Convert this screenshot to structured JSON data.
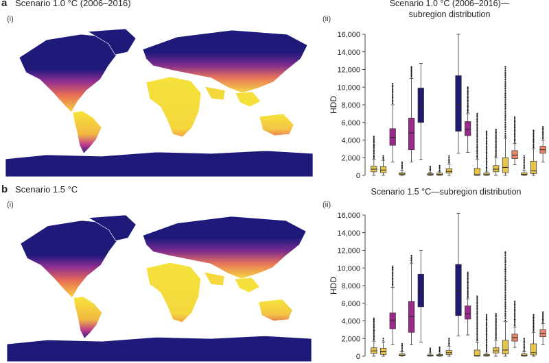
{
  "panel_a": {
    "letter": "a",
    "title": "Scenario 1.0 °C (2006–2016)",
    "map_label": "(i)",
    "chart_label": "(ii)",
    "chart_title_line1": "Scenario 1.0 °C (2006–2016)—",
    "chart_title_line2": "subregion distribution"
  },
  "panel_b": {
    "letter": "b",
    "title": "Scenario 1.5 °C",
    "map_label": "(i)",
    "chart_label": "(ii)",
    "chart_title_line1": "Scenario 1.5 °C—subregion distribution"
  },
  "colors": {
    "navy": "#1f1a7a",
    "purple": "#9b2a8a",
    "orange": "#e7836a",
    "yellow": "#e8c84a",
    "ocean": "#ffffff"
  },
  "chart_data": [
    {
      "type": "box",
      "title": "Scenario 1.0 °C (2006–2016)—subregion distribution",
      "ylabel": "HDD",
      "ylim": [
        0,
        16000
      ],
      "yticks": [
        "0",
        "2,000",
        "4,000",
        "6,000",
        "8,000",
        "10,000",
        "12,000",
        "14,000",
        "16,000"
      ],
      "boxes": [
        {
          "color": "yellow",
          "min": 0,
          "q1": 400,
          "median": 700,
          "q3": 1050,
          "max": 1800,
          "outlier_top": 4400
        },
        {
          "color": "yellow",
          "min": 0,
          "q1": 300,
          "median": 600,
          "q3": 1000,
          "max": 1700,
          "outlier_top": 2200
        },
        {
          "color": "purple",
          "min": 1500,
          "q1": 3400,
          "median": 4300,
          "q3": 5300,
          "max": 8000,
          "outlier_top": 10400
        },
        {
          "color": "yellow",
          "min": 0,
          "q1": 50,
          "median": 150,
          "q3": 300,
          "max": 600,
          "outlier_top": 1500
        },
        {
          "color": "purple",
          "min": 1500,
          "q1": 2900,
          "median": 4800,
          "q3": 6500,
          "max": 11000,
          "outlier_top": 12300
        },
        {
          "color": "navy",
          "min": 1800,
          "q1": 6000,
          "median": 7700,
          "q3": 9900,
          "max": 12700,
          "outlier_top": null
        },
        {
          "color": "yellow",
          "min": 0,
          "q1": 20,
          "median": 80,
          "q3": 200,
          "max": 350,
          "outlier_top": 1000
        },
        {
          "color": "yellow",
          "min": 0,
          "q1": 20,
          "median": 100,
          "q3": 250,
          "max": 400,
          "outlier_top": 1100
        },
        {
          "color": "yellow",
          "min": 0,
          "q1": 250,
          "median": 450,
          "q3": 750,
          "max": 1300,
          "outlier_top": 2200
        },
        {
          "color": "navy",
          "min": 2500,
          "q1": 5000,
          "median": 8000,
          "q3": 11300,
          "max": 16000,
          "outlier_top": null
        },
        {
          "color": "purple",
          "min": 2600,
          "q1": 4500,
          "median": 5200,
          "q3": 6100,
          "max": 7000,
          "outlier_top": 10000
        },
        {
          "color": "yellow",
          "min": 0,
          "q1": 0,
          "median": 80,
          "q3": 800,
          "max": 1800,
          "outlier_top": 7000
        },
        {
          "color": "yellow",
          "min": 0,
          "q1": 20,
          "median": 80,
          "q3": 250,
          "max": 400,
          "outlier_top": 5000
        },
        {
          "color": "yellow",
          "min": 0,
          "q1": 400,
          "median": 700,
          "q3": 1100,
          "max": 2000,
          "outlier_top": 5200
        },
        {
          "color": "yellow",
          "min": 0,
          "q1": 300,
          "median": 900,
          "q3": 2000,
          "max": 4200,
          "outlier_top": 12300
        },
        {
          "color": "orange",
          "min": 1200,
          "q1": 1900,
          "median": 2300,
          "q3": 2800,
          "max": 3600,
          "outlier_top": 6600
        },
        {
          "color": "yellow",
          "min": 0,
          "q1": 20,
          "median": 100,
          "q3": 300,
          "max": 600,
          "outlier_top": 2200
        },
        {
          "color": "yellow",
          "min": 0,
          "q1": 200,
          "median": 500,
          "q3": 1600,
          "max": 3000,
          "outlier_top": 5100
        },
        {
          "color": "orange",
          "min": 1500,
          "q1": 2500,
          "median": 2900,
          "q3": 3300,
          "max": 4000,
          "outlier_top": 5500
        }
      ]
    },
    {
      "type": "box",
      "title": "Scenario 1.5 °C—subregion distribution",
      "ylabel": "HDD",
      "ylim": [
        0,
        16000
      ],
      "yticks": [
        "0",
        "2,000",
        "4,000",
        "6,000",
        "8,000",
        "10,000",
        "12,000",
        "14,000",
        "16,000"
      ],
      "boxes": [
        {
          "color": "yellow",
          "min": 0,
          "q1": 300,
          "median": 600,
          "q3": 950,
          "max": 1700,
          "outlier_top": 4300
        },
        {
          "color": "yellow",
          "min": 0,
          "q1": 200,
          "median": 500,
          "q3": 900,
          "max": 1600,
          "outlier_top": 2000
        },
        {
          "color": "purple",
          "min": 1300,
          "q1": 3100,
          "median": 4000,
          "q3": 4900,
          "max": 7800,
          "outlier_top": 10200
        },
        {
          "color": "yellow",
          "min": 0,
          "q1": 30,
          "median": 120,
          "q3": 250,
          "max": 500,
          "outlier_top": 1400
        },
        {
          "color": "purple",
          "min": 1300,
          "q1": 2700,
          "median": 4500,
          "q3": 6200,
          "max": 10500,
          "outlier_top": 11400
        },
        {
          "color": "navy",
          "min": 1600,
          "q1": 5600,
          "median": 7300,
          "q3": 9300,
          "max": 12000,
          "outlier_top": null
        },
        {
          "color": "yellow",
          "min": 0,
          "q1": 10,
          "median": 60,
          "q3": 150,
          "max": 300,
          "outlier_top": 900
        },
        {
          "color": "yellow",
          "min": 0,
          "q1": 10,
          "median": 80,
          "q3": 200,
          "max": 350,
          "outlier_top": 1000
        },
        {
          "color": "yellow",
          "min": 0,
          "q1": 200,
          "median": 400,
          "q3": 650,
          "max": 1100,
          "outlier_top": 2000
        },
        {
          "color": "navy",
          "min": 2300,
          "q1": 4600,
          "median": 7400,
          "q3": 10400,
          "max": 16200,
          "outlier_top": null
        },
        {
          "color": "purple",
          "min": 2400,
          "q1": 4200,
          "median": 4800,
          "q3": 5700,
          "max": 6500,
          "outlier_top": 9500
        },
        {
          "color": "yellow",
          "min": 0,
          "q1": 0,
          "median": 60,
          "q3": 700,
          "max": 1600,
          "outlier_top": 6800
        },
        {
          "color": "yellow",
          "min": 0,
          "q1": 10,
          "median": 60,
          "q3": 200,
          "max": 350,
          "outlier_top": 4700
        },
        {
          "color": "yellow",
          "min": 0,
          "q1": 350,
          "median": 600,
          "q3": 950,
          "max": 1800,
          "outlier_top": 4800
        },
        {
          "color": "yellow",
          "min": 0,
          "q1": 250,
          "median": 700,
          "q3": 1800,
          "max": 3900,
          "outlier_top": 11800
        },
        {
          "color": "orange",
          "min": 1000,
          "q1": 1700,
          "median": 2100,
          "q3": 2500,
          "max": 3300,
          "outlier_top": 6200
        },
        {
          "color": "yellow",
          "min": 0,
          "q1": 10,
          "median": 80,
          "q3": 250,
          "max": 500,
          "outlier_top": 2000
        },
        {
          "color": "yellow",
          "min": 0,
          "q1": 150,
          "median": 400,
          "q3": 1400,
          "max": 2700,
          "outlier_top": 4700
        },
        {
          "color": "orange",
          "min": 1300,
          "q1": 2200,
          "median": 2600,
          "q3": 3000,
          "max": 3700,
          "outlier_top": 5000
        }
      ]
    }
  ]
}
